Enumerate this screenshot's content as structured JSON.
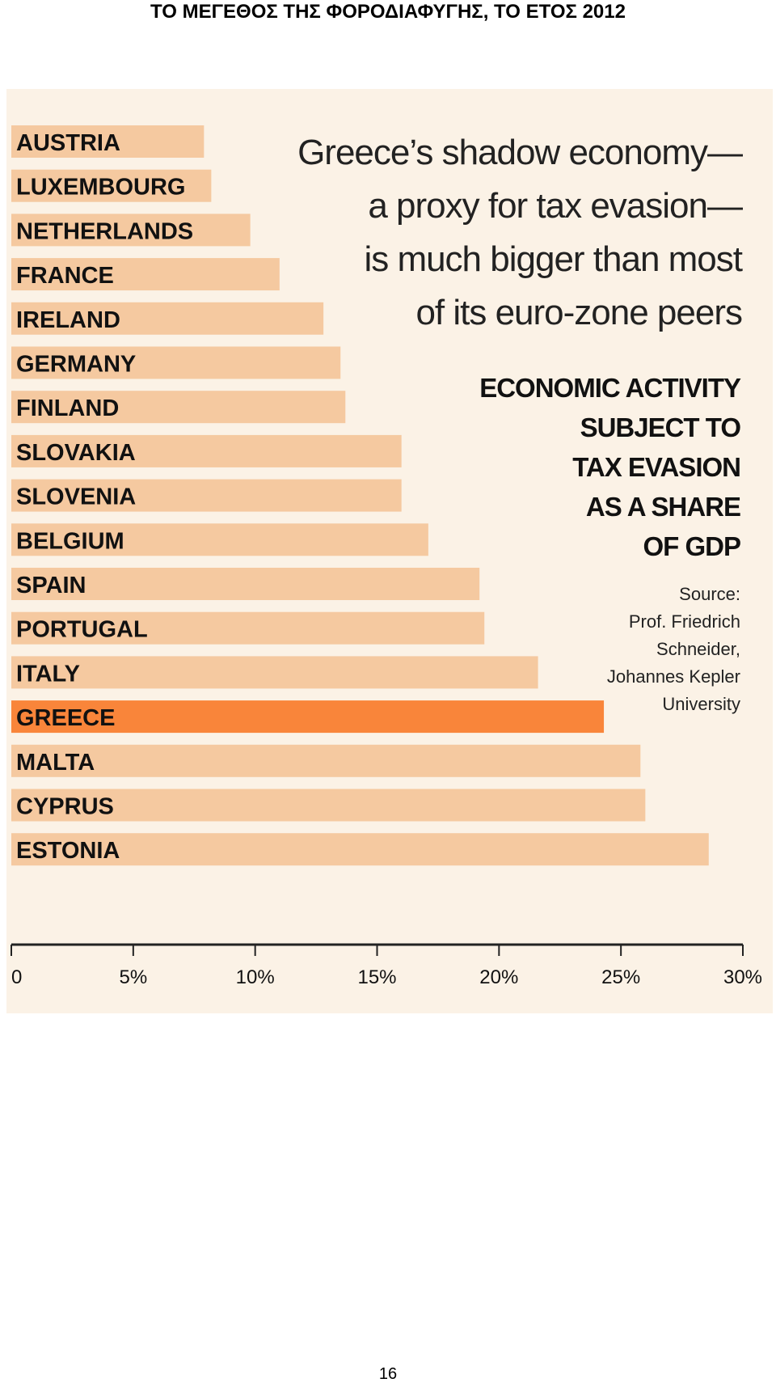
{
  "page": {
    "heading": "ΤΟ ΜΕΓΕΘΟΣ ΤΗΣ ΦΟΡΟΔΙΑΦΥΓΗΣ, ΤΟ ΕΤΟΣ 2012",
    "page_number": "16"
  },
  "figure": {
    "headline_lines": [
      "Greece’s shadow economy—",
      "a proxy for tax evasion—",
      "is much bigger than most",
      "of its euro-zone peers"
    ],
    "subhead_lines": [
      "ECONOMIC ACTIVITY",
      "SUBJECT TO",
      "TAX EVASION",
      "AS A SHARE",
      "OF GDP"
    ],
    "source_lines": [
      "Source:",
      "Prof. Friedrich",
      "Schneider,",
      "Johannes Kepler",
      "University"
    ]
  },
  "chart_data": {
    "type": "bar",
    "orientation": "horizontal",
    "categories": [
      "AUSTRIA",
      "LUXEMBOURG",
      "NETHERLANDS",
      "FRANCE",
      "IRELAND",
      "GERMANY",
      "FINLAND",
      "SLOVAKIA",
      "SLOVENIA",
      "BELGIUM",
      "SPAIN",
      "PORTUGAL",
      "ITALY",
      "GREECE",
      "MALTA",
      "CYPRUS",
      "ESTONIA"
    ],
    "values": [
      7.9,
      8.2,
      9.8,
      11.0,
      12.8,
      13.5,
      13.7,
      16.0,
      16.0,
      17.1,
      19.2,
      19.4,
      21.6,
      24.3,
      25.8,
      26.0,
      28.6
    ],
    "highlight": "GREECE",
    "xlim": [
      0,
      30
    ],
    "x_ticks": [
      0,
      5,
      10,
      15,
      20,
      25,
      30
    ],
    "x_tick_labels": [
      "0",
      "5%",
      "10%",
      "15%",
      "20%",
      "25%",
      "30%"
    ],
    "colors": {
      "bar": "#f5c9a0",
      "highlight": "#f9853a",
      "background": "#fbf2e6",
      "axis": "#222222"
    }
  }
}
